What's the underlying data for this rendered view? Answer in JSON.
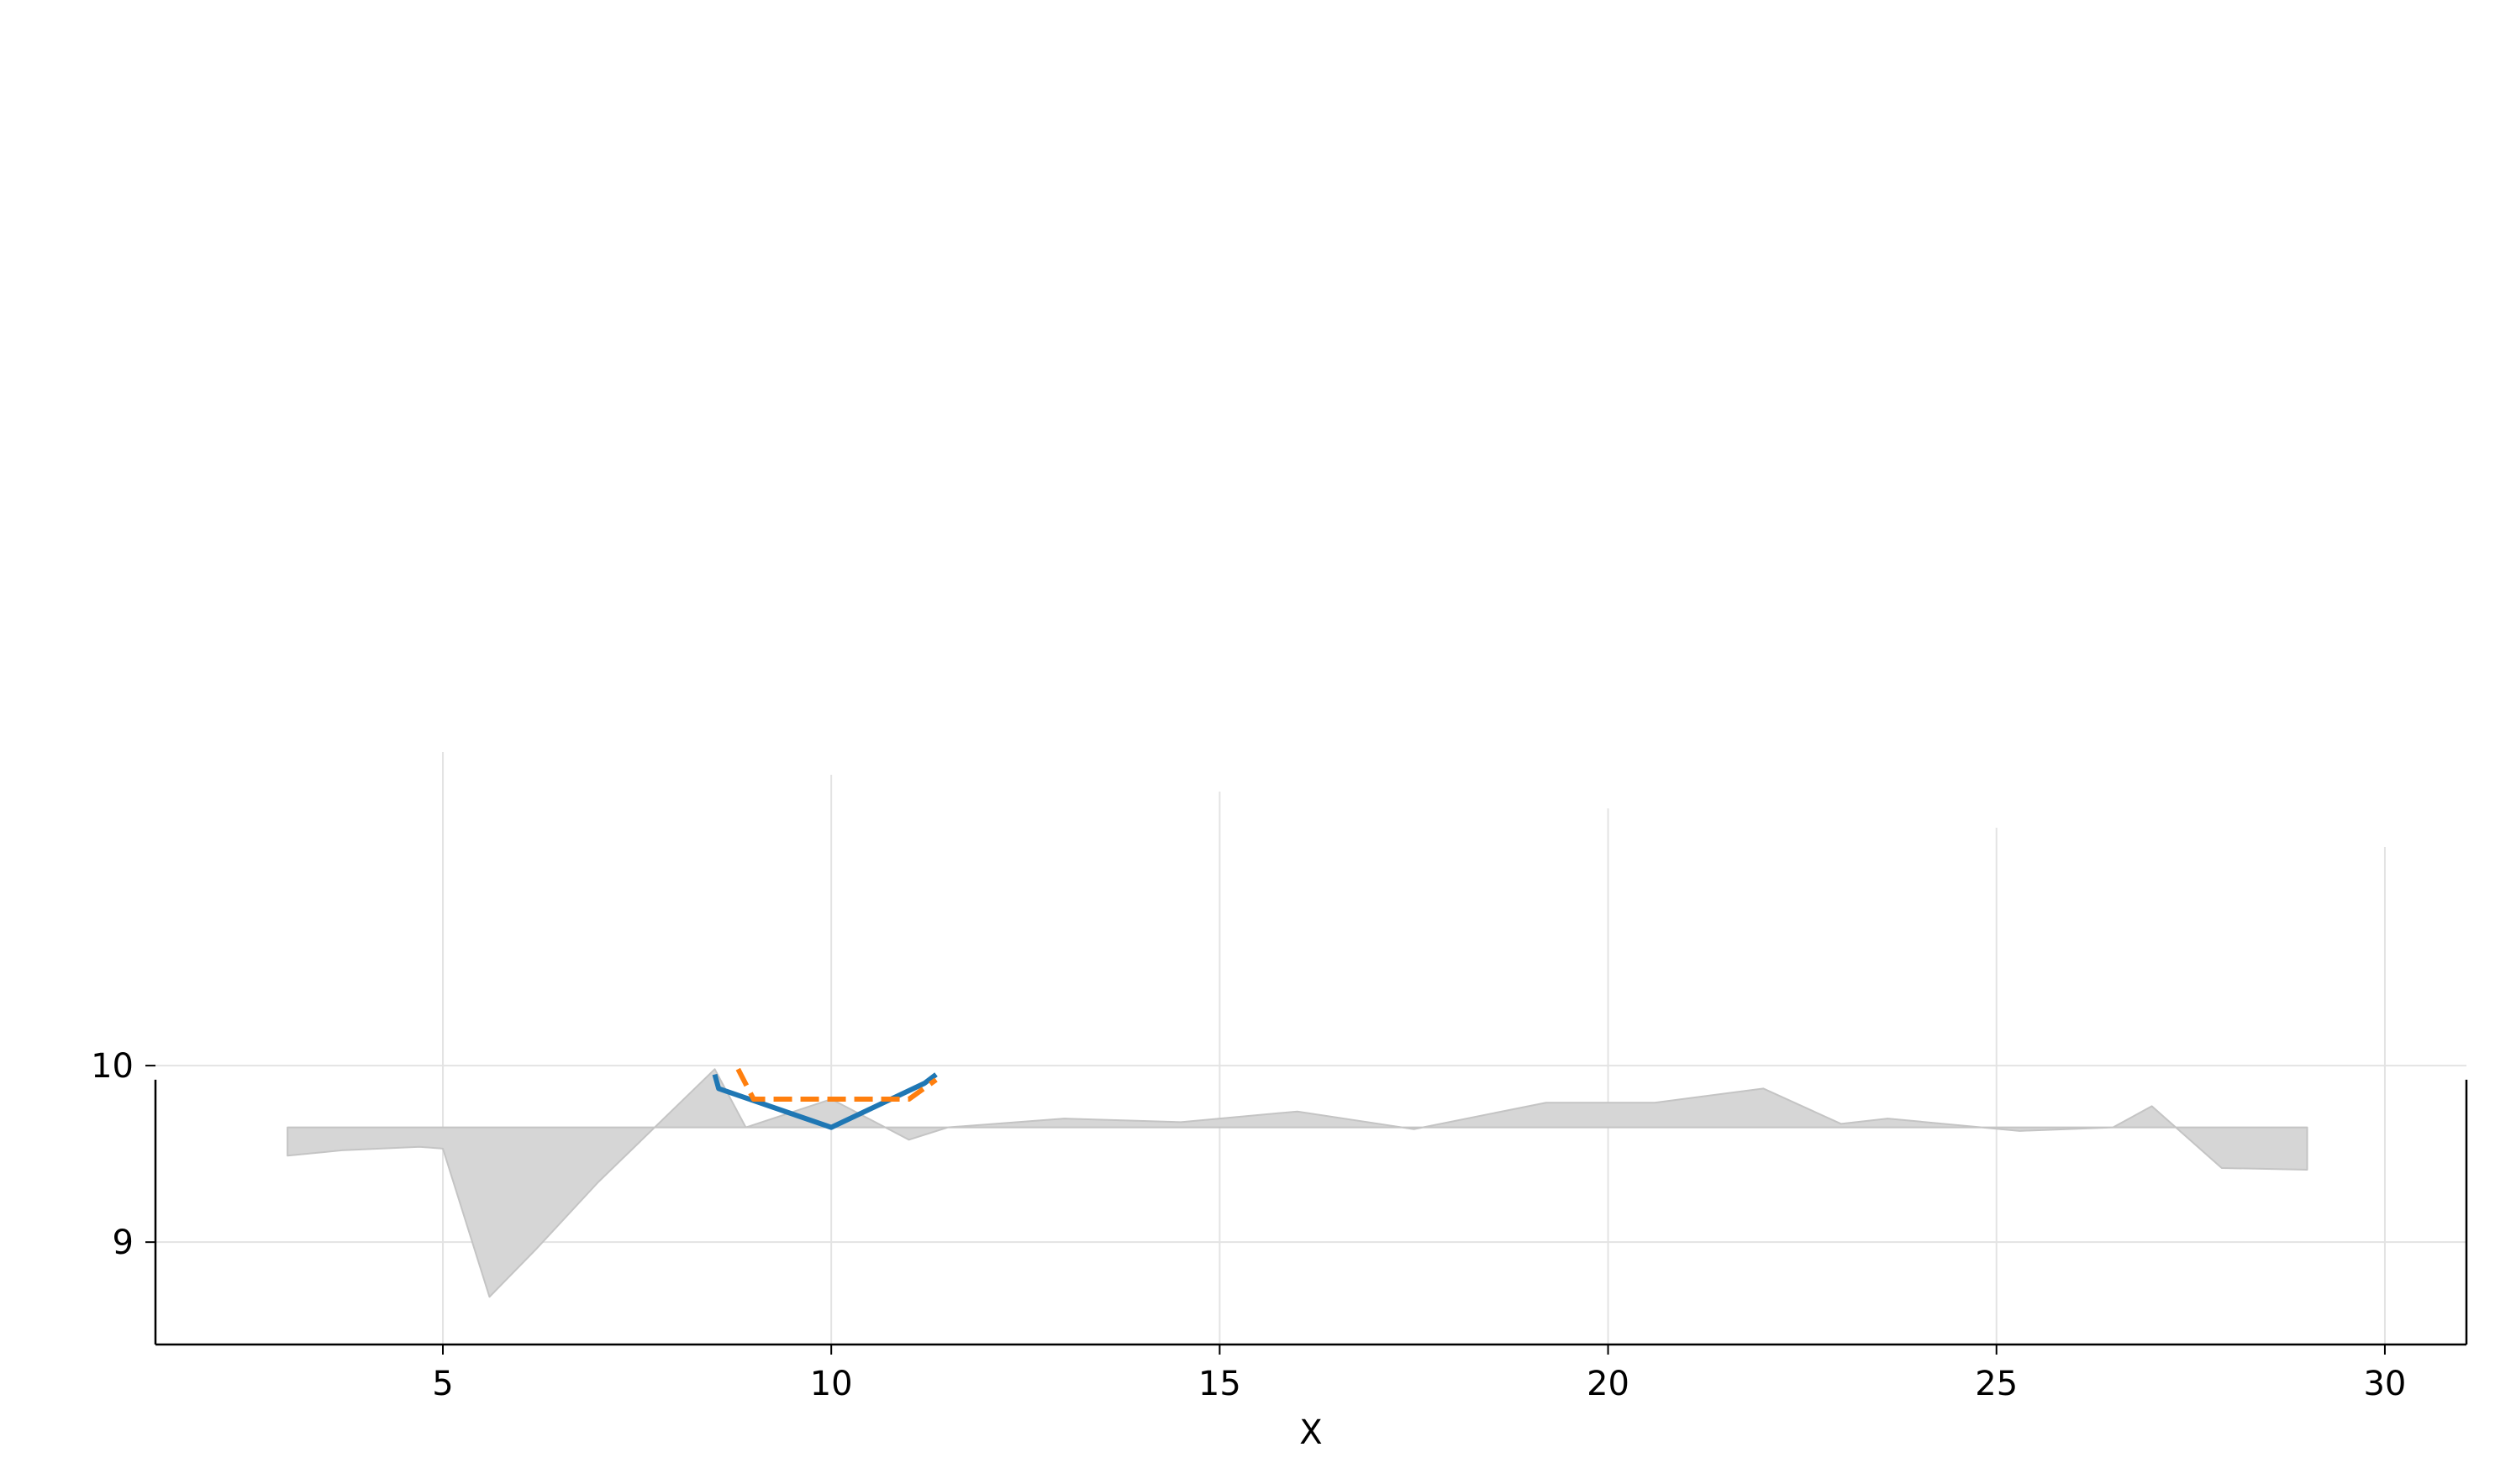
{
  "chart_data": {
    "type": "line",
    "title": "",
    "xlabel": "X",
    "ylabel": "",
    "xlim": [
      1.3,
      31.05
    ],
    "ylim": [
      8.42,
      11.8
    ],
    "xticks": [
      5,
      10,
      15,
      20,
      25,
      30
    ],
    "yticks": [
      9,
      10
    ],
    "grid": true,
    "colors": {
      "band_fill": "#d6d6d6",
      "band_edge": "#c4c4c4",
      "series_1": "#1f77b4",
      "series_2": "#ff7f0e",
      "grid": "#e3e3e3",
      "axis": "#000000"
    },
    "band": {
      "baseline": 9.65,
      "x": [
        3.0,
        3.7,
        4.7,
        5.0,
        5.6,
        6.2,
        7.0,
        8.5,
        8.9,
        10.0,
        11.0,
        11.5,
        13.0,
        14.5,
        16.0,
        17.5,
        19.2,
        20.6,
        22.0,
        23.0,
        23.6,
        25.3,
        26.5,
        27.0,
        27.9,
        29.0
      ],
      "y": [
        9.49,
        9.52,
        9.54,
        9.53,
        8.69,
        8.96,
        9.34,
        9.98,
        9.65,
        9.81,
        9.58,
        9.65,
        9.7,
        9.68,
        9.74,
        9.64,
        9.79,
        9.79,
        9.87,
        9.67,
        9.7,
        9.63,
        9.65,
        9.77,
        9.42,
        9.41
      ]
    },
    "series": [
      {
        "x": [
          8.5,
          8.55,
          10.0,
          11.2,
          11.35
        ],
        "y": [
          9.95,
          9.87,
          9.65,
          9.9,
          9.95
        ],
        "style": "solid"
      },
      {
        "x": [
          8.8,
          9.0,
          10.0,
          11.0,
          11.35
        ],
        "y": [
          9.98,
          9.81,
          9.81,
          9.81,
          9.92
        ],
        "style": "dashed"
      }
    ]
  }
}
